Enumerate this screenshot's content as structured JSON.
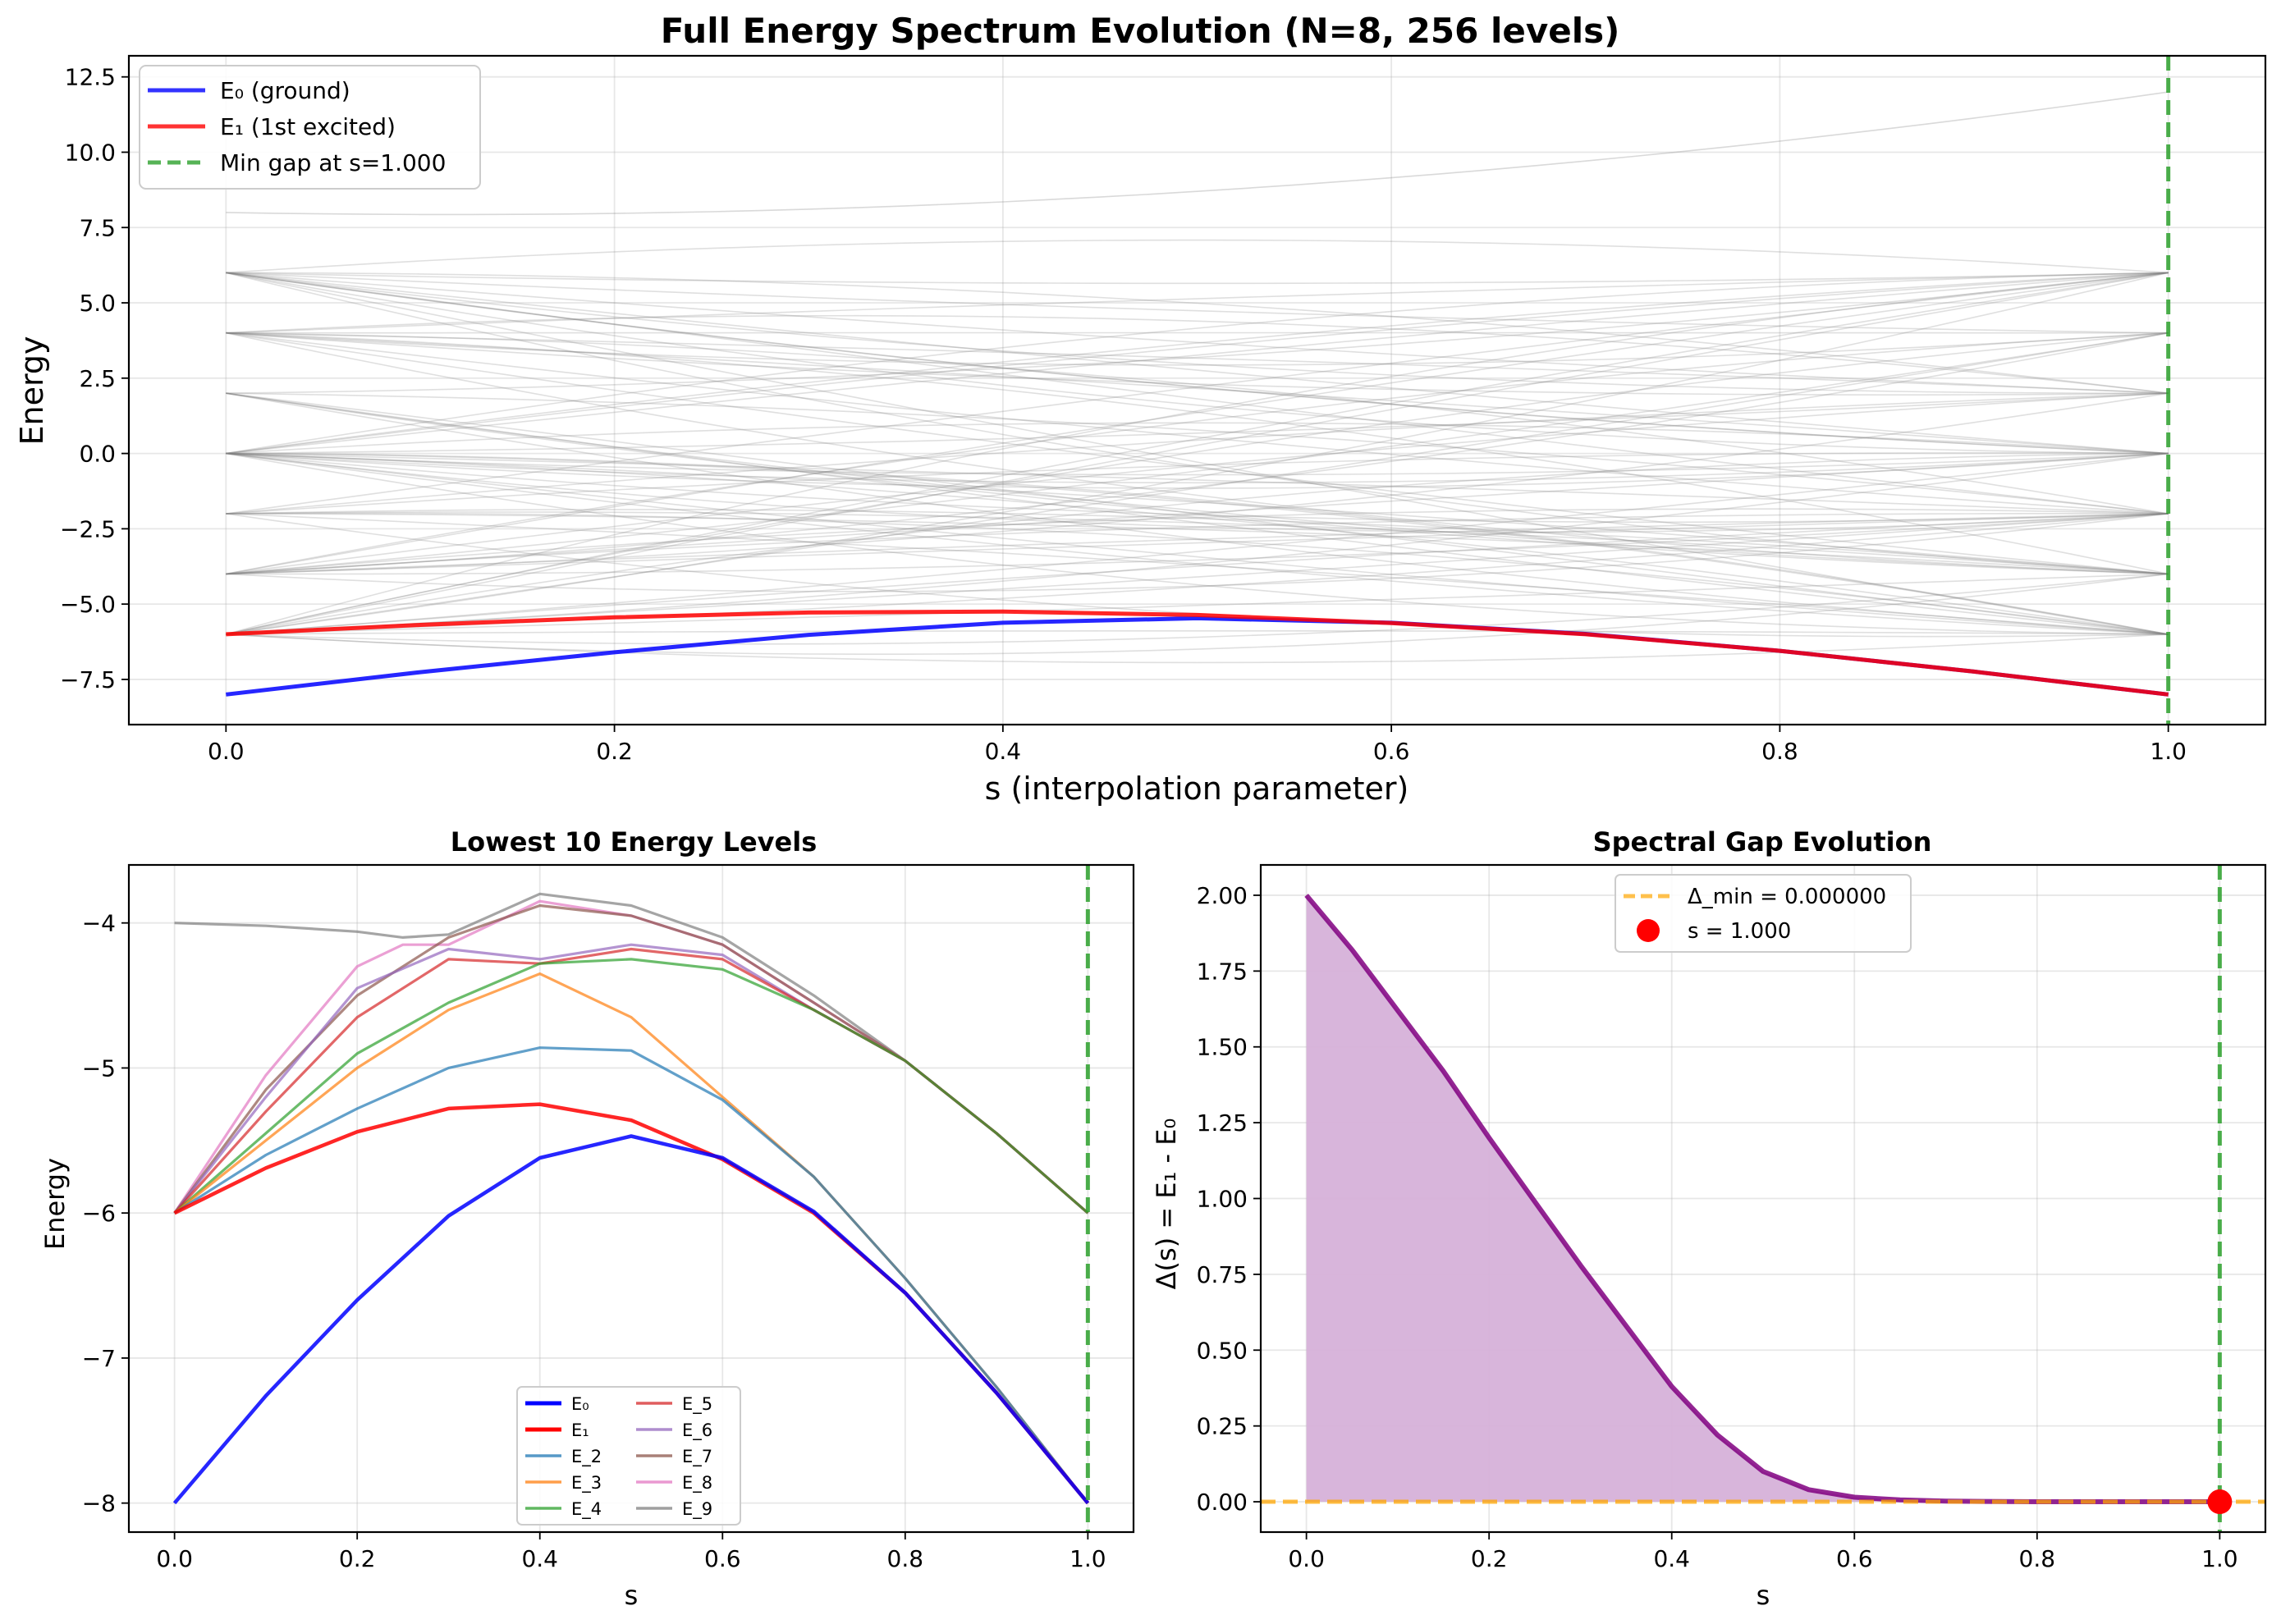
{
  "chart_data": [
    {
      "type": "line",
      "title": "Full Energy Spectrum Evolution (N=8, 256 levels)",
      "xlabel": "s (interpolation parameter)",
      "ylabel": "Energy",
      "xlim": [
        -0.05,
        1.05
      ],
      "ylim": [
        -9.0,
        13.2
      ],
      "xticks": [
        0.0,
        0.2,
        0.4,
        0.6,
        0.8,
        1.0
      ],
      "xtick_labels": [
        "0.0",
        "0.2",
        "0.4",
        "0.6",
        "0.8",
        "1.0"
      ],
      "yticks": [
        -7.5,
        -5.0,
        -2.5,
        0.0,
        2.5,
        5.0,
        7.5,
        10.0,
        12.5
      ],
      "ytick_labels": [
        "−7.5",
        "−5.0",
        "−2.5",
        "0.0",
        "2.5",
        "5.0",
        "7.5",
        "10.0",
        "12.5"
      ],
      "grid": true,
      "legend_position": "top-left",
      "background_levels": {
        "color": "#808080",
        "count": 256,
        "start_energies": [
          -6,
          -4,
          -2,
          0,
          2,
          4,
          6,
          8
        ],
        "end_energies": [
          -6,
          -4,
          -2,
          0,
          2,
          4,
          6,
          12
        ]
      },
      "series": [
        {
          "name": "E₀ (ground)",
          "color": "#0000ff",
          "x": [
            0,
            0.1,
            0.2,
            0.3,
            0.4,
            0.5,
            0.6,
            0.7,
            0.8,
            0.9,
            1.0
          ],
          "y": [
            -8.0,
            -7.26,
            -6.6,
            -6.02,
            -5.62,
            -5.47,
            -5.62,
            -5.99,
            -6.55,
            -7.24,
            -8.0
          ]
        },
        {
          "name": "E₁ (1st excited)",
          "color": "#ff0000",
          "x": [
            0,
            0.1,
            0.2,
            0.3,
            0.4,
            0.5,
            0.6,
            0.7,
            0.8,
            0.9,
            1.0
          ],
          "y": [
            -6.0,
            -5.69,
            -5.44,
            -5.28,
            -5.25,
            -5.36,
            -5.63,
            -6.0,
            -6.55,
            -7.24,
            -8.0
          ]
        }
      ],
      "vline": {
        "name": "Min gap at s=1.000",
        "x": 1.0,
        "color": "#2ca02c",
        "style": "dashed"
      }
    },
    {
      "type": "line",
      "title": "Lowest 10 Energy Levels",
      "xlabel": "s",
      "ylabel": "Energy",
      "xlim": [
        -0.05,
        1.05
      ],
      "ylim": [
        -8.2,
        -3.6
      ],
      "xticks": [
        0.0,
        0.2,
        0.4,
        0.6,
        0.8,
        1.0
      ],
      "xtick_labels": [
        "0.0",
        "0.2",
        "0.4",
        "0.6",
        "0.8",
        "1.0"
      ],
      "yticks": [
        -8,
        -7,
        -6,
        -5,
        -4
      ],
      "ytick_labels": [
        "−8",
        "−7",
        "−6",
        "−5",
        "−4"
      ],
      "grid": true,
      "legend_position": "bottom-center",
      "series": [
        {
          "name": "E₀",
          "color": "#0000ff",
          "x": [
            0,
            0.1,
            0.2,
            0.3,
            0.4,
            0.5,
            0.6,
            0.7,
            0.8,
            0.9,
            1.0
          ],
          "y": [
            -8.0,
            -7.26,
            -6.6,
            -6.02,
            -5.62,
            -5.47,
            -5.62,
            -5.99,
            -6.55,
            -7.24,
            -8.0
          ]
        },
        {
          "name": "E₁",
          "color": "#ff0000",
          "x": [
            0,
            0.1,
            0.2,
            0.3,
            0.4,
            0.5,
            0.6,
            0.7,
            0.8,
            0.9,
            1.0
          ],
          "y": [
            -6.0,
            -5.69,
            -5.44,
            -5.28,
            -5.25,
            -5.36,
            -5.63,
            -6.0,
            -6.55,
            -7.24,
            -8.0
          ]
        },
        {
          "name": "E_2",
          "color": "#1f77b4",
          "x": [
            0,
            0.1,
            0.2,
            0.3,
            0.4,
            0.5,
            0.6,
            0.7,
            0.8,
            0.9,
            1.0
          ],
          "y": [
            -6.0,
            -5.6,
            -5.28,
            -5.0,
            -4.86,
            -4.88,
            -5.22,
            -5.75,
            -6.45,
            -7.2,
            -8.0
          ]
        },
        {
          "name": "E_3",
          "color": "#ff7f0e",
          "x": [
            0,
            0.1,
            0.2,
            0.3,
            0.4,
            0.5,
            0.6,
            0.7,
            0.8,
            0.9,
            1.0
          ],
          "y": [
            -6.0,
            -5.5,
            -5.0,
            -4.6,
            -4.35,
            -4.65,
            -5.2,
            -5.75,
            -6.45,
            -7.2,
            -8.0
          ]
        },
        {
          "name": "E_4",
          "color": "#2ca02c",
          "x": [
            0,
            0.1,
            0.2,
            0.3,
            0.4,
            0.5,
            0.6,
            0.7,
            0.8,
            0.9,
            1.0
          ],
          "y": [
            -6.0,
            -5.45,
            -4.9,
            -4.55,
            -4.28,
            -4.25,
            -4.32,
            -4.6,
            -4.95,
            -5.45,
            -6.0
          ]
        },
        {
          "name": "E_5",
          "color": "#d62728",
          "x": [
            0,
            0.1,
            0.2,
            0.3,
            0.4,
            0.5,
            0.6,
            0.7,
            0.8,
            0.9,
            1.0
          ],
          "y": [
            -6.0,
            -5.3,
            -4.65,
            -4.25,
            -4.28,
            -4.18,
            -4.25,
            -4.6,
            -4.95,
            -5.45,
            -6.0
          ]
        },
        {
          "name": "E_6",
          "color": "#9467bd",
          "x": [
            0,
            0.1,
            0.2,
            0.3,
            0.4,
            0.5,
            0.6,
            0.7,
            0.8,
            0.9,
            1.0
          ],
          "y": [
            -6.0,
            -5.2,
            -4.45,
            -4.18,
            -4.25,
            -4.15,
            -4.22,
            -4.6,
            -4.95,
            -5.45,
            -6.0
          ]
        },
        {
          "name": "E_7",
          "color": "#8c564b",
          "x": [
            0,
            0.1,
            0.2,
            0.3,
            0.4,
            0.5,
            0.6,
            0.7,
            0.8,
            0.9,
            1.0
          ],
          "y": [
            -6.0,
            -5.15,
            -4.5,
            -4.1,
            -3.88,
            -3.95,
            -4.15,
            -4.55,
            -4.95,
            -5.45,
            -6.0
          ]
        },
        {
          "name": "E_8",
          "color": "#e377c2",
          "x": [
            0,
            0.1,
            0.2,
            0.25,
            0.3,
            0.4,
            0.5,
            0.6,
            0.7,
            0.8,
            0.9,
            1.0
          ],
          "y": [
            -6.0,
            -5.05,
            -4.3,
            -4.15,
            -4.15,
            -3.85,
            -3.95,
            -4.15,
            -4.55,
            -4.95,
            -5.45,
            -6.0
          ]
        },
        {
          "name": "E_9",
          "color": "#7f7f7f",
          "x": [
            0,
            0.1,
            0.2,
            0.25,
            0.3,
            0.4,
            0.5,
            0.6,
            0.7,
            0.8,
            0.9,
            1.0
          ],
          "y": [
            -4.0,
            -4.02,
            -4.06,
            -4.1,
            -4.08,
            -3.8,
            -3.88,
            -4.1,
            -4.5,
            -4.95,
            -5.45,
            -6.0
          ]
        }
      ],
      "vline": {
        "x": 1.0,
        "color": "#2ca02c",
        "style": "dashed"
      }
    },
    {
      "type": "area",
      "title": "Spectral Gap Evolution",
      "xlabel": "s",
      "ylabel": "Δ(s) = E₁ - E₀",
      "xlim": [
        -0.05,
        1.05
      ],
      "ylim": [
        -0.1,
        2.1
      ],
      "xticks": [
        0.0,
        0.2,
        0.4,
        0.6,
        0.8,
        1.0
      ],
      "xtick_labels": [
        "0.0",
        "0.2",
        "0.4",
        "0.6",
        "0.8",
        "1.0"
      ],
      "yticks": [
        0.0,
        0.25,
        0.5,
        0.75,
        1.0,
        1.25,
        1.5,
        1.75,
        2.0
      ],
      "ytick_labels": [
        "0.00",
        "0.25",
        "0.50",
        "0.75",
        "1.00",
        "1.25",
        "1.50",
        "1.75",
        "2.00"
      ],
      "grid": true,
      "legend_position": "top-center",
      "series": [
        {
          "name": "",
          "color": "#800080",
          "fill": "#d6b1d9",
          "x": [
            0,
            0.05,
            0.1,
            0.15,
            0.2,
            0.25,
            0.3,
            0.35,
            0.4,
            0.45,
            0.5,
            0.55,
            0.6,
            0.65,
            0.7,
            0.8,
            0.9,
            1.0
          ],
          "y": [
            2.0,
            1.82,
            1.62,
            1.42,
            1.2,
            0.99,
            0.78,
            0.58,
            0.38,
            0.22,
            0.1,
            0.04,
            0.015,
            0.006,
            0.002,
            0.0,
            0.0,
            0.0
          ]
        }
      ],
      "hline": {
        "name": "Δ_min = 0.000000",
        "y": 0.0,
        "color": "#ffa500",
        "style": "dashed"
      },
      "marker": {
        "name": "s = 1.000",
        "x": 1.0,
        "y": 0.0,
        "color": "#ff0000"
      },
      "vline": {
        "x": 1.0,
        "color": "#2ca02c",
        "style": "dashed"
      }
    }
  ]
}
